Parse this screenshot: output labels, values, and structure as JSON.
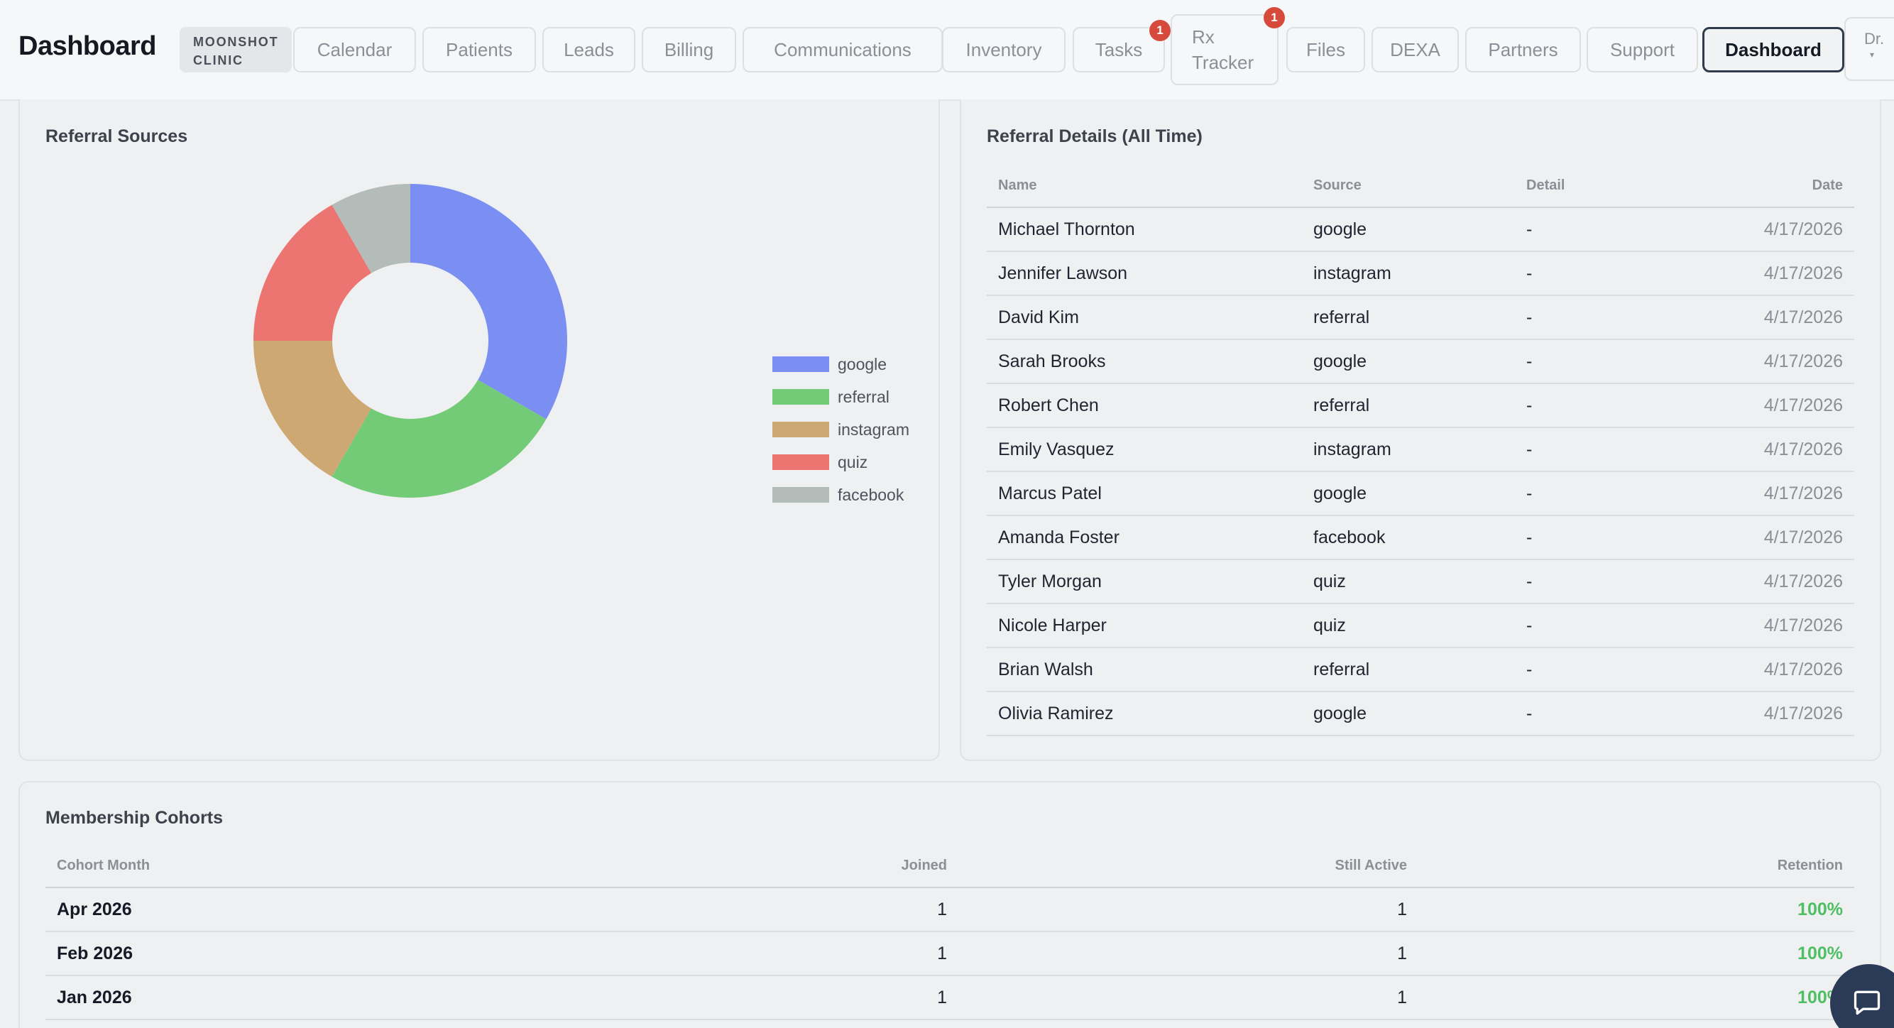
{
  "header": {
    "title": "Dashboard",
    "clinic": [
      "MOONSHOT",
      "CLINIC"
    ],
    "tabs": [
      {
        "label": "Calendar"
      },
      {
        "label": "Patients"
      },
      {
        "label": "Leads"
      },
      {
        "label": "Billing"
      },
      {
        "label": "Communications"
      },
      {
        "label": "Inventory"
      },
      {
        "label": "Tasks",
        "badge": "1"
      },
      {
        "label": [
          "Rx",
          "Tracker"
        ],
        "badge": "1"
      },
      {
        "label": "Files"
      },
      {
        "label": "DEXA"
      },
      {
        "label": "Partners"
      },
      {
        "label": "Support"
      },
      {
        "label": "Dashboard",
        "active": true
      }
    ],
    "user_menu": "Dr.",
    "user_menu_caret": "▾"
  },
  "referral_sources": {
    "title": "Referral Sources",
    "chart_data": {
      "type": "pie",
      "labels": [
        "google",
        "referral",
        "instagram",
        "quiz",
        "facebook"
      ],
      "values": [
        4,
        3,
        2,
        2,
        1
      ],
      "colors": [
        "#7b8ff2",
        "#73cb78",
        "#cda872",
        "#ec7471",
        "#b3bcb9"
      ],
      "legend": "right"
    }
  },
  "referral_details": {
    "title": "Referral Details (All Time)",
    "columns": [
      "Name",
      "Source",
      "Detail",
      "Date"
    ],
    "rows": [
      {
        "name": "Michael Thornton",
        "source": "google",
        "detail": "-",
        "date": "4/17/2026"
      },
      {
        "name": "Jennifer Lawson",
        "source": "instagram",
        "detail": "-",
        "date": "4/17/2026"
      },
      {
        "name": "David Kim",
        "source": "referral",
        "detail": "-",
        "date": "4/17/2026"
      },
      {
        "name": "Sarah Brooks",
        "source": "google",
        "detail": "-",
        "date": "4/17/2026"
      },
      {
        "name": "Robert Chen",
        "source": "referral",
        "detail": "-",
        "date": "4/17/2026"
      },
      {
        "name": "Emily Vasquez",
        "source": "instagram",
        "detail": "-",
        "date": "4/17/2026"
      },
      {
        "name": "Marcus Patel",
        "source": "google",
        "detail": "-",
        "date": "4/17/2026"
      },
      {
        "name": "Amanda Foster",
        "source": "facebook",
        "detail": "-",
        "date": "4/17/2026"
      },
      {
        "name": "Tyler Morgan",
        "source": "quiz",
        "detail": "-",
        "date": "4/17/2026"
      },
      {
        "name": "Nicole Harper",
        "source": "quiz",
        "detail": "-",
        "date": "4/17/2026"
      },
      {
        "name": "Brian Walsh",
        "source": "referral",
        "detail": "-",
        "date": "4/17/2026"
      },
      {
        "name": "Olivia Ramirez",
        "source": "google",
        "detail": "-",
        "date": "4/17/2026"
      }
    ]
  },
  "membership_cohorts": {
    "title": "Membership Cohorts",
    "columns": [
      "Cohort Month",
      "Joined",
      "Still Active",
      "Retention"
    ],
    "rows": [
      {
        "month": "Apr 2026",
        "joined": "1",
        "active": "1",
        "retention": "100%"
      },
      {
        "month": "Feb 2026",
        "joined": "1",
        "active": "1",
        "retention": "100%"
      },
      {
        "month": "Jan 2026",
        "joined": "1",
        "active": "1",
        "retention": "100%"
      }
    ]
  },
  "chat": {
    "icon": "chat-bubble-icon"
  }
}
